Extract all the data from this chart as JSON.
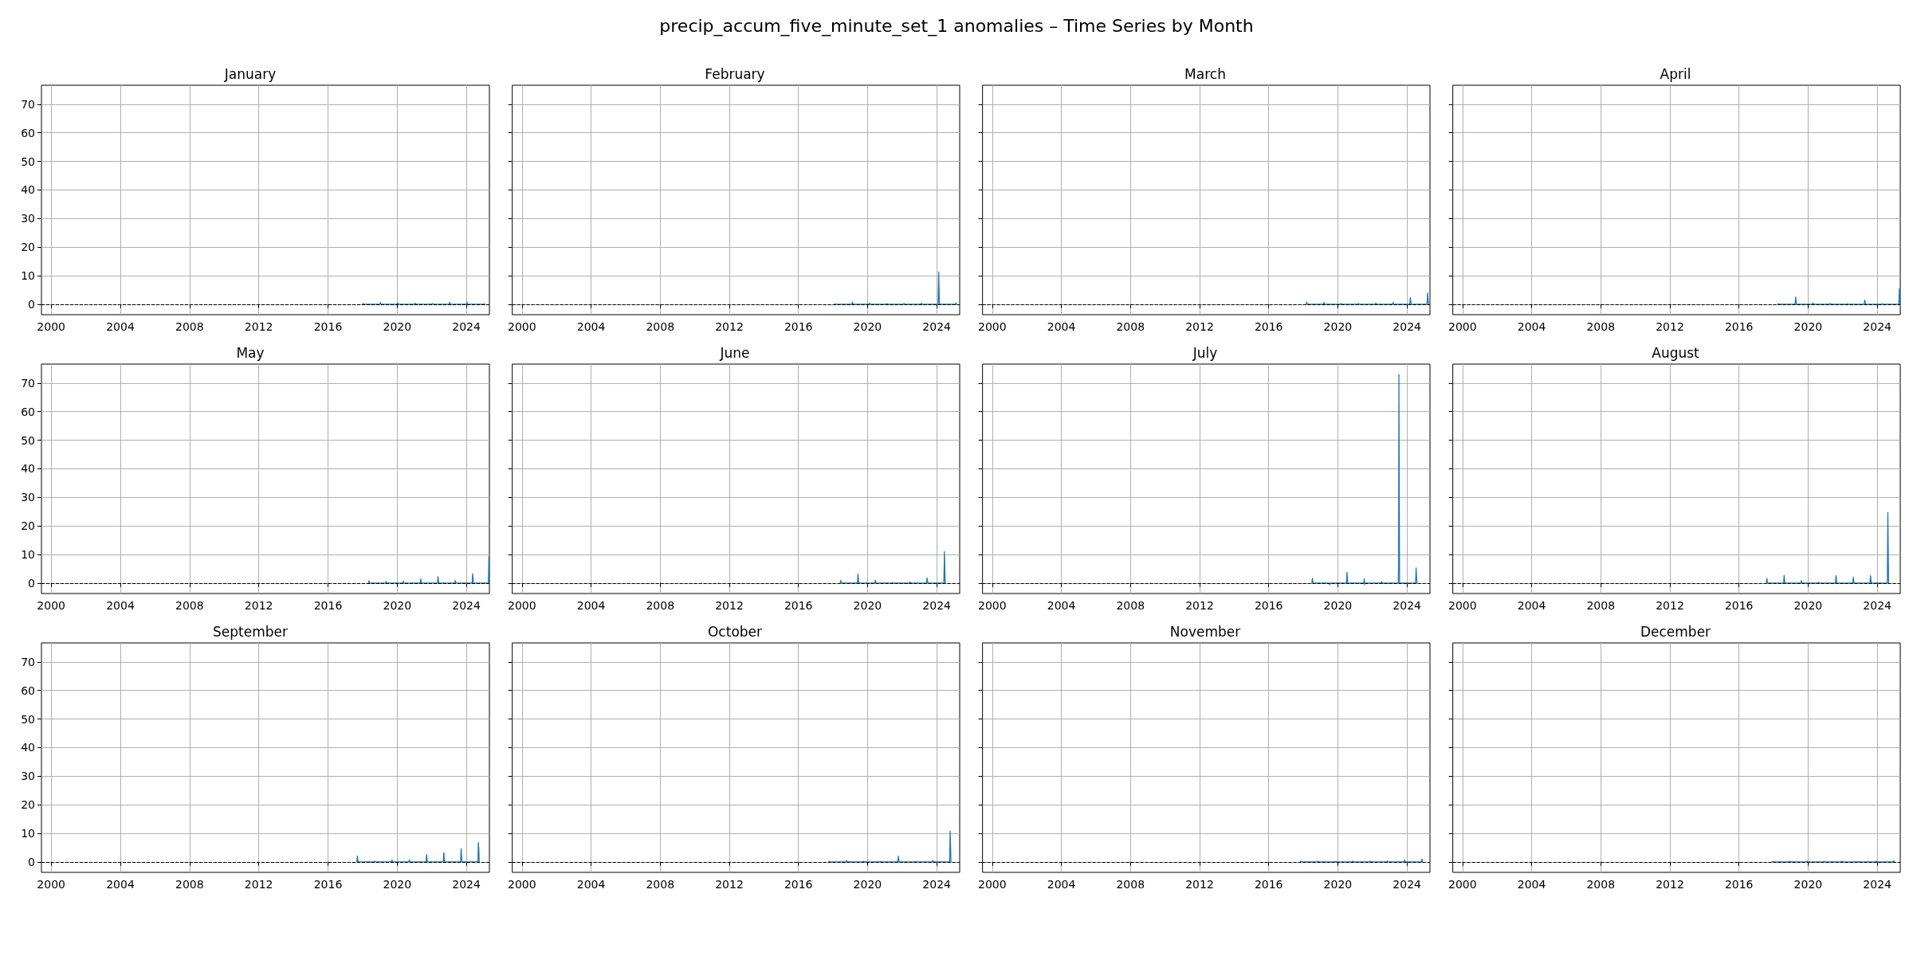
{
  "chart_data": [
    {
      "type": "line",
      "title": "January",
      "annotations": [
        "precip_accum_five_minute_set_1 anomalies – Time Series by Month"
      ],
      "xlim": [
        "1999-06-10",
        "2025-05-01"
      ],
      "ylim": [
        -3.65,
        76.65
      ],
      "xticks": [
        "2000",
        "2004",
        "2008",
        "2012",
        "2016",
        "2020",
        "2024"
      ],
      "yticks": [
        0,
        10,
        20,
        30,
        40,
        50,
        60,
        70
      ],
      "grid": true,
      "ref_lines": [
        {
          "axis": "y",
          "value": 0,
          "color": "#000000",
          "line_style": "dashed"
        }
      ],
      "series": [
        {
          "color": "#1f77b4",
          "x": [
            "2018-01-01",
            "2018-01-12",
            "2018-01-28",
            "2019-01-01",
            "2019-01-12",
            "2019-01-28",
            "2020-01-01",
            "2020-01-12",
            "2020-01-28",
            "2021-01-01",
            "2021-01-12",
            "2021-01-28",
            "2022-01-01",
            "2022-01-12",
            "2022-01-28",
            "2023-01-01",
            "2023-01-12",
            "2023-01-28",
            "2024-01-01",
            "2024-01-12",
            "2024-01-28",
            "2025-01-01",
            "2025-01-12",
            "2025-01-28"
          ],
          "values": [
            0,
            0.3,
            0,
            0,
            0.6,
            0,
            0,
            0.5,
            0,
            0,
            0.4,
            0,
            0,
            0.3,
            0,
            0,
            0.7,
            0,
            0,
            0.8,
            0,
            0,
            0.2,
            0
          ]
        }
      ]
    },
    {
      "type": "line",
      "title": "February",
      "xlim": [
        "1999-06-10",
        "2025-05-01"
      ],
      "ylim": [
        -3.65,
        76.65
      ],
      "xticks": [
        "2000",
        "2004",
        "2008",
        "2012",
        "2016",
        "2020",
        "2024"
      ],
      "yticks": [
        0,
        10,
        20,
        30,
        40,
        50,
        60,
        70
      ],
      "grid": true,
      "tick_labels": "x",
      "ref_lines": [
        {
          "axis": "y",
          "value": 0,
          "color": "#000000",
          "line_style": "dashed"
        }
      ],
      "series": [
        {
          "color": "#1f77b4",
          "x": [
            "2018-02-01",
            "2018-02-12",
            "2018-02-27",
            "2019-02-01",
            "2019-02-12",
            "2019-02-27",
            "2020-02-01",
            "2020-02-12",
            "2020-02-27",
            "2021-02-01",
            "2021-02-12",
            "2021-02-27",
            "2022-02-01",
            "2022-02-12",
            "2022-02-27",
            "2023-02-01",
            "2023-02-12",
            "2023-02-27",
            "2024-02-01",
            "2024-02-12",
            "2024-02-27",
            "2025-02-01",
            "2025-02-12",
            "2025-02-27"
          ],
          "values": [
            0,
            0.2,
            0,
            0,
            0.8,
            0,
            0,
            0.4,
            0,
            0,
            0.3,
            0,
            0,
            0.3,
            0,
            0,
            0.4,
            0,
            0,
            11.3,
            0,
            0,
            0.5,
            0
          ]
        }
      ]
    },
    {
      "type": "line",
      "title": "March",
      "xlim": [
        "1999-06-10",
        "2025-05-01"
      ],
      "ylim": [
        -3.65,
        76.65
      ],
      "xticks": [
        "2000",
        "2004",
        "2008",
        "2012",
        "2016",
        "2020",
        "2024"
      ],
      "yticks": [
        0,
        10,
        20,
        30,
        40,
        50,
        60,
        70
      ],
      "grid": true,
      "tick_labels": "x",
      "ref_lines": [
        {
          "axis": "y",
          "value": 0,
          "color": "#000000",
          "line_style": "dashed"
        }
      ],
      "series": [
        {
          "color": "#1f77b4",
          "x": [
            "2018-03-01",
            "2018-03-12",
            "2018-03-28",
            "2019-03-01",
            "2019-03-12",
            "2019-03-28",
            "2020-03-01",
            "2020-03-12",
            "2020-03-28",
            "2021-03-01",
            "2021-03-12",
            "2021-03-28",
            "2022-03-01",
            "2022-03-12",
            "2022-03-28",
            "2023-03-01",
            "2023-03-12",
            "2023-03-28",
            "2024-03-01",
            "2024-03-12",
            "2024-03-28",
            "2025-03-01",
            "2025-03-12",
            "2025-03-28"
          ],
          "values": [
            0,
            0.8,
            0,
            0,
            0.7,
            0,
            0,
            0.3,
            0,
            0,
            0.3,
            0,
            0,
            0.4,
            0,
            0,
            0.6,
            0,
            0,
            2.3,
            0,
            0,
            4.0,
            0
          ]
        }
      ]
    },
    {
      "type": "line",
      "title": "April",
      "xlim": [
        "1999-06-10",
        "2025-05-01"
      ],
      "ylim": [
        -3.65,
        76.65
      ],
      "xticks": [
        "2000",
        "2004",
        "2008",
        "2012",
        "2016",
        "2020",
        "2024"
      ],
      "yticks": [
        0,
        10,
        20,
        30,
        40,
        50,
        60,
        70
      ],
      "grid": true,
      "tick_labels": "x",
      "ref_lines": [
        {
          "axis": "y",
          "value": 0,
          "color": "#000000",
          "line_style": "dashed"
        }
      ],
      "series": [
        {
          "color": "#1f77b4",
          "x": [
            "2018-04-01",
            "2018-04-12",
            "2018-04-28",
            "2019-04-01",
            "2019-04-12",
            "2019-04-28",
            "2020-04-01",
            "2020-04-12",
            "2020-04-28",
            "2021-04-01",
            "2021-04-12",
            "2021-04-28",
            "2022-04-01",
            "2022-04-12",
            "2022-04-28",
            "2023-04-01",
            "2023-04-12",
            "2023-04-28",
            "2024-04-01",
            "2024-04-12",
            "2024-04-28",
            "2025-04-01",
            "2025-04-12",
            "2025-04-28"
          ],
          "values": [
            0,
            0.2,
            0,
            0,
            2.5,
            0,
            0,
            0.5,
            0,
            0,
            0.3,
            0,
            0,
            0.2,
            0,
            0,
            1.5,
            0,
            0,
            0.2,
            0,
            0,
            5.5,
            0
          ]
        }
      ]
    },
    {
      "type": "line",
      "title": "May",
      "xlim": [
        "1999-06-10",
        "2025-05-01"
      ],
      "ylim": [
        -3.65,
        76.65
      ],
      "xticks": [
        "2000",
        "2004",
        "2008",
        "2012",
        "2016",
        "2020",
        "2024"
      ],
      "yticks": [
        0,
        10,
        20,
        30,
        40,
        50,
        60,
        70
      ],
      "grid": true,
      "ref_lines": [
        {
          "axis": "y",
          "value": 0,
          "color": "#000000",
          "line_style": "dashed"
        }
      ],
      "series": [
        {
          "color": "#1f77b4",
          "x": [
            "2018-05-01",
            "2018-05-12",
            "2018-05-28",
            "2019-05-01",
            "2019-05-12",
            "2019-05-28",
            "2020-05-01",
            "2020-05-12",
            "2020-05-28",
            "2021-05-01",
            "2021-05-12",
            "2021-05-28",
            "2022-05-01",
            "2022-05-12",
            "2022-05-28",
            "2023-05-01",
            "2023-05-12",
            "2023-05-28",
            "2024-05-01",
            "2024-05-12",
            "2024-05-28",
            "2025-04-10",
            "2025-04-20",
            "2025-04-28"
          ],
          "values": [
            0,
            0.8,
            0,
            0,
            0.6,
            0,
            0,
            0.7,
            0,
            0,
            1.5,
            0,
            0,
            2.2,
            0,
            0,
            0.9,
            0,
            0,
            3.3,
            0,
            0,
            9.3,
            0
          ]
        }
      ]
    },
    {
      "type": "line",
      "title": "June",
      "xlim": [
        "1999-06-10",
        "2025-05-01"
      ],
      "ylim": [
        -3.65,
        76.65
      ],
      "xticks": [
        "2000",
        "2004",
        "2008",
        "2012",
        "2016",
        "2020",
        "2024"
      ],
      "yticks": [
        0,
        10,
        20,
        30,
        40,
        50,
        60,
        70
      ],
      "grid": true,
      "tick_labels": "x",
      "ref_lines": [
        {
          "axis": "y",
          "value": 0,
          "color": "#000000",
          "line_style": "dashed"
        }
      ],
      "series": [
        {
          "color": "#1f77b4",
          "x": [
            "2018-06-01",
            "2018-06-12",
            "2018-06-28",
            "2019-06-01",
            "2019-06-12",
            "2019-06-28",
            "2020-06-01",
            "2020-06-12",
            "2020-06-28",
            "2021-06-01",
            "2021-06-12",
            "2021-06-28",
            "2022-06-01",
            "2022-06-12",
            "2022-06-28",
            "2023-06-01",
            "2023-06-12",
            "2023-06-28",
            "2024-06-01",
            "2024-06-12",
            "2024-06-20",
            "2024-06-28"
          ],
          "values": [
            0,
            1.0,
            0,
            0,
            3.2,
            0,
            0,
            1.0,
            0,
            0,
            0.2,
            0,
            0,
            0.4,
            0,
            0,
            1.8,
            0,
            0,
            11.0,
            6.0,
            0
          ]
        }
      ]
    },
    {
      "type": "line",
      "title": "July",
      "xlim": [
        "1999-06-10",
        "2025-05-01"
      ],
      "ylim": [
        -3.65,
        76.65
      ],
      "xticks": [
        "2000",
        "2004",
        "2008",
        "2012",
        "2016",
        "2020",
        "2024"
      ],
      "yticks": [
        0,
        10,
        20,
        30,
        40,
        50,
        60,
        70
      ],
      "grid": true,
      "tick_labels": "x",
      "ref_lines": [
        {
          "axis": "y",
          "value": 0,
          "color": "#000000",
          "line_style": "dashed"
        }
      ],
      "series": [
        {
          "color": "#1f77b4",
          "x": [
            "2018-07-01",
            "2018-07-12",
            "2018-07-28",
            "2019-07-01",
            "2019-07-12",
            "2019-07-28",
            "2020-07-01",
            "2020-07-12",
            "2020-07-28",
            "2021-07-01",
            "2021-07-12",
            "2021-07-20",
            "2021-07-28",
            "2022-07-01",
            "2022-07-12",
            "2022-07-28",
            "2023-07-01",
            "2023-07-08",
            "2023-07-14",
            "2023-07-28",
            "2024-07-01",
            "2024-07-12",
            "2024-07-28"
          ],
          "values": [
            0,
            1.7,
            0,
            0,
            -0.5,
            0,
            0,
            3.8,
            0,
            0,
            1.5,
            -0.5,
            0,
            0,
            0.5,
            0,
            0,
            7.0,
            73.0,
            0,
            0,
            5.3,
            0
          ]
        }
      ]
    },
    {
      "type": "line",
      "title": "August",
      "xlim": [
        "1999-06-10",
        "2025-05-01"
      ],
      "ylim": [
        -3.65,
        76.65
      ],
      "xticks": [
        "2000",
        "2004",
        "2008",
        "2012",
        "2016",
        "2020",
        "2024"
      ],
      "yticks": [
        0,
        10,
        20,
        30,
        40,
        50,
        60,
        70
      ],
      "grid": true,
      "tick_labels": "x",
      "ref_lines": [
        {
          "axis": "y",
          "value": 0,
          "color": "#000000",
          "line_style": "dashed"
        }
      ],
      "series": [
        {
          "color": "#1f77b4",
          "x": [
            "2017-08-01",
            "2017-08-12",
            "2017-08-28",
            "2018-08-01",
            "2018-08-12",
            "2018-08-28",
            "2019-08-01",
            "2019-08-12",
            "2019-08-28",
            "2020-08-01",
            "2020-08-12",
            "2020-08-28",
            "2021-08-01",
            "2021-08-12",
            "2021-08-28",
            "2022-08-01",
            "2022-08-12",
            "2022-08-28",
            "2023-08-01",
            "2023-08-12",
            "2023-08-28",
            "2024-08-01",
            "2024-08-12",
            "2024-08-28"
          ],
          "values": [
            0,
            1.6,
            0,
            0,
            2.7,
            0,
            0,
            0.9,
            0,
            0,
            0.3,
            0,
            0,
            2.6,
            0,
            0,
            2.0,
            0,
            0,
            2.6,
            0,
            0,
            24.7,
            0
          ]
        }
      ]
    },
    {
      "type": "line",
      "title": "September",
      "xlim": [
        "1999-06-10",
        "2025-05-01"
      ],
      "ylim": [
        -3.65,
        76.65
      ],
      "xticks": [
        "2000",
        "2004",
        "2008",
        "2012",
        "2016",
        "2020",
        "2024"
      ],
      "yticks": [
        0,
        10,
        20,
        30,
        40,
        50,
        60,
        70
      ],
      "grid": true,
      "ref_lines": [
        {
          "axis": "y",
          "value": 0,
          "color": "#000000",
          "line_style": "dashed"
        }
      ],
      "series": [
        {
          "color": "#1f77b4",
          "x": [
            "2017-09-01",
            "2017-09-12",
            "2017-09-28",
            "2018-09-01",
            "2018-09-12",
            "2018-09-28",
            "2019-09-01",
            "2019-09-12",
            "2019-09-28",
            "2020-09-01",
            "2020-09-12",
            "2020-09-28",
            "2021-09-01",
            "2021-09-12",
            "2021-09-28",
            "2022-09-01",
            "2022-09-12",
            "2022-09-28",
            "2023-09-01",
            "2023-09-12",
            "2023-09-28",
            "2024-09-01",
            "2024-09-10",
            "2024-09-20",
            "2024-09-28"
          ],
          "values": [
            0,
            2.0,
            0,
            0,
            0.3,
            0,
            0,
            0.7,
            0,
            0,
            0.7,
            0,
            0,
            2.6,
            0,
            0,
            3.3,
            0,
            0,
            4.6,
            0,
            0,
            6.8,
            4.3,
            0
          ]
        }
      ]
    },
    {
      "type": "line",
      "title": "October",
      "xlim": [
        "1999-06-10",
        "2025-05-01"
      ],
      "ylim": [
        -3.65,
        76.65
      ],
      "xticks": [
        "2000",
        "2004",
        "2008",
        "2012",
        "2016",
        "2020",
        "2024"
      ],
      "yticks": [
        0,
        10,
        20,
        30,
        40,
        50,
        60,
        70
      ],
      "grid": true,
      "tick_labels": "x",
      "ref_lines": [
        {
          "axis": "y",
          "value": 0,
          "color": "#000000",
          "line_style": "dashed"
        }
      ],
      "series": [
        {
          "color": "#1f77b4",
          "x": [
            "2017-10-01",
            "2017-10-12",
            "2017-10-28",
            "2018-10-01",
            "2018-10-12",
            "2018-10-28",
            "2019-10-01",
            "2019-10-12",
            "2019-10-28",
            "2020-10-01",
            "2020-10-12",
            "2020-10-28",
            "2021-10-01",
            "2021-10-12",
            "2021-10-28",
            "2022-10-01",
            "2022-10-12",
            "2022-10-28",
            "2023-10-01",
            "2023-10-12",
            "2023-10-28",
            "2024-10-01",
            "2024-10-12",
            "2024-10-28"
          ],
          "values": [
            0,
            0.2,
            0,
            0,
            0.5,
            0,
            0,
            0.3,
            0,
            0,
            0.2,
            0,
            0,
            2.0,
            0,
            0,
            0.2,
            0,
            0,
            0.6,
            0,
            0,
            10.8,
            0
          ]
        }
      ]
    },
    {
      "type": "line",
      "title": "November",
      "xlim": [
        "1999-06-10",
        "2025-05-01"
      ],
      "ylim": [
        -3.65,
        76.65
      ],
      "xticks": [
        "2000",
        "2004",
        "2008",
        "2012",
        "2016",
        "2020",
        "2024"
      ],
      "yticks": [
        0,
        10,
        20,
        30,
        40,
        50,
        60,
        70
      ],
      "grid": true,
      "tick_labels": "x",
      "ref_lines": [
        {
          "axis": "y",
          "value": 0,
          "color": "#000000",
          "line_style": "dashed"
        }
      ],
      "series": [
        {
          "color": "#1f77b4",
          "x": [
            "2017-11-01",
            "2017-11-12",
            "2017-11-28",
            "2018-11-01",
            "2018-11-12",
            "2018-11-28",
            "2019-11-01",
            "2019-11-12",
            "2019-11-28",
            "2020-11-01",
            "2020-11-12",
            "2020-11-28",
            "2021-11-01",
            "2021-11-12",
            "2021-11-28",
            "2022-11-01",
            "2022-11-12",
            "2022-11-28",
            "2023-11-01",
            "2023-11-12",
            "2023-11-28",
            "2024-11-01",
            "2024-11-12",
            "2024-11-28"
          ],
          "values": [
            0,
            0.3,
            0,
            0,
            0.3,
            0,
            0,
            0.2,
            0,
            0,
            0.3,
            0,
            0,
            0.3,
            0,
            0,
            0.3,
            0,
            0,
            0.7,
            0,
            0,
            1.0,
            0
          ]
        }
      ]
    },
    {
      "type": "line",
      "title": "December",
      "xlim": [
        "1999-06-10",
        "2025-05-01"
      ],
      "ylim": [
        -3.65,
        76.65
      ],
      "xticks": [
        "2000",
        "2004",
        "2008",
        "2012",
        "2016",
        "2020",
        "2024"
      ],
      "yticks": [
        0,
        10,
        20,
        30,
        40,
        50,
        60,
        70
      ],
      "grid": true,
      "tick_labels": "x",
      "ref_lines": [
        {
          "axis": "y",
          "value": 0,
          "color": "#000000",
          "line_style": "dashed"
        }
      ],
      "series": [
        {
          "color": "#1f77b4",
          "x": [
            "2017-12-01",
            "2017-12-12",
            "2017-12-28",
            "2018-12-01",
            "2018-12-12",
            "2018-12-28",
            "2019-12-01",
            "2019-12-12",
            "2019-12-28",
            "2020-12-01",
            "2020-12-12",
            "2020-12-28",
            "2021-12-01",
            "2021-12-12",
            "2021-12-28",
            "2022-12-01",
            "2022-12-12",
            "2022-12-28",
            "2023-12-01",
            "2023-12-12",
            "2023-12-28",
            "2024-12-01",
            "2024-12-12",
            "2024-12-28"
          ],
          "values": [
            0,
            0.2,
            0,
            0,
            0.3,
            0,
            0,
            0.3,
            0,
            0,
            0.2,
            0,
            0,
            0.3,
            0,
            0,
            0.2,
            0,
            0,
            0.3,
            0,
            0,
            0.4,
            0
          ]
        }
      ]
    }
  ]
}
